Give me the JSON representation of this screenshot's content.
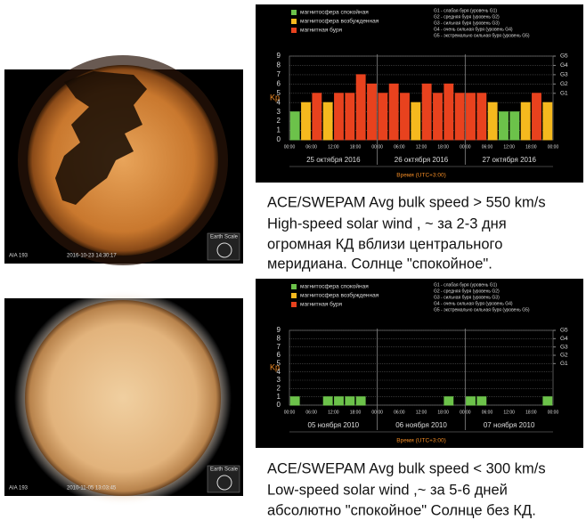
{
  "chart_data": [
    {
      "type": "bar",
      "legend": [
        {
          "label": "магнитосфера спокойная",
          "color": "#6cc24a"
        },
        {
          "label": "магнитосфера возбужденная",
          "color": "#f5b91e"
        },
        {
          "label": "магнитная буря",
          "color": "#e8421e"
        }
      ],
      "storm_levels": [
        "G1 - слабая буря (уровень G1)",
        "G2 - средняя буря (уровень G2)",
        "G3 - сильная буря (уровень G3)",
        "G4 - очень сильная буря (уровень G4)",
        "G5 - экстремально сильная буря (уровень G5)"
      ],
      "ylabel": "Kp",
      "xlabel": "Время (UTC+3:00)",
      "categories": [
        "00:00",
        null,
        "06:00",
        null,
        "12:00",
        null,
        "18:00",
        null,
        "00:00",
        null,
        "06:00",
        null,
        "12:00",
        null,
        "18:00",
        null,
        "00:00",
        null,
        "06:00",
        null,
        "12:00",
        null,
        "18:00",
        null
      ],
      "x_end_label": "00:00",
      "days": [
        "25 октября 2016",
        "26 октября 2016",
        "27 октября 2016"
      ],
      "values": [
        3,
        4,
        5,
        4,
        5,
        5,
        7,
        6,
        5,
        6,
        5,
        4,
        6,
        5,
        6,
        5,
        5,
        5,
        4,
        3,
        3,
        4,
        5,
        4
      ],
      "colors": [
        "#6cc24a",
        "#f5b91e",
        "#e8421e",
        "#f5b91e",
        "#e8421e",
        "#e8421e",
        "#e8421e",
        "#e8421e",
        "#e8421e",
        "#e8421e",
        "#e8421e",
        "#f5b91e",
        "#e8421e",
        "#e8421e",
        "#e8421e",
        "#e8421e",
        "#e8421e",
        "#e8421e",
        "#f5b91e",
        "#6cc24a",
        "#6cc24a",
        "#f5b91e",
        "#e8421e",
        "#f5b91e"
      ],
      "ylim": [
        0,
        9
      ],
      "yticks": [
        0,
        1,
        2,
        3,
        4,
        5,
        6,
        7,
        8,
        9
      ],
      "y2ticks": [
        {
          "value": 5,
          "label": "G1"
        },
        {
          "value": 6,
          "label": "G2"
        },
        {
          "value": 7,
          "label": "G3"
        },
        {
          "value": 8,
          "label": "G4"
        },
        {
          "value": 9,
          "label": "G5"
        }
      ],
      "grid": true
    },
    {
      "type": "bar",
      "legend": [
        {
          "label": "магнитосфера спокойная",
          "color": "#6cc24a"
        },
        {
          "label": "магнитосфера возбужденная",
          "color": "#f5b91e"
        },
        {
          "label": "магнитная буря",
          "color": "#e8421e"
        }
      ],
      "storm_levels": [
        "G1 - слабая буря (уровень G1)",
        "G2 - средняя буря (уровень G2)",
        "G3 - сильная буря (уровень G3)",
        "G4 - очень сильная буря (уровень G4)",
        "G5 - экстремально сильная буря (уровень G5)"
      ],
      "ylabel": "Kp",
      "xlabel": "Время (UTC+3:00)",
      "categories": [
        "00:00",
        null,
        "06:00",
        null,
        "12:00",
        null,
        "18:00",
        null,
        "00:00",
        null,
        "06:00",
        null,
        "12:00",
        null,
        "18:00",
        null,
        "00:00",
        null,
        "06:00",
        null,
        "12:00",
        null,
        "18:00",
        null
      ],
      "x_end_label": "00:00",
      "days": [
        "05 ноября 2010",
        "06 ноября 2010",
        "07 ноября 2010"
      ],
      "values": [
        1,
        0,
        0,
        1,
        1,
        1,
        1,
        0,
        0,
        0,
        0,
        0,
        0,
        0,
        1,
        0,
        1,
        1,
        0,
        0,
        0,
        0,
        0,
        1
      ],
      "colors": [
        "#6cc24a",
        "#6cc24a",
        "#6cc24a",
        "#6cc24a",
        "#6cc24a",
        "#6cc24a",
        "#6cc24a",
        "#6cc24a",
        "#6cc24a",
        "#6cc24a",
        "#6cc24a",
        "#6cc24a",
        "#6cc24a",
        "#6cc24a",
        "#6cc24a",
        "#6cc24a",
        "#6cc24a",
        "#6cc24a",
        "#6cc24a",
        "#6cc24a",
        "#6cc24a",
        "#6cc24a",
        "#6cc24a",
        "#6cc24a"
      ],
      "ylim": [
        0,
        9
      ],
      "yticks": [
        0,
        1,
        2,
        3,
        4,
        5,
        6,
        7,
        8,
        9
      ],
      "y2ticks": [
        {
          "value": 5,
          "label": "G1"
        },
        {
          "value": 6,
          "label": "G2"
        },
        {
          "value": 7,
          "label": "G3"
        },
        {
          "value": 8,
          "label": "G4"
        },
        {
          "value": 9,
          "label": "G5"
        }
      ],
      "grid": true
    }
  ],
  "images": [
    {
      "instrument": "AIA 193",
      "timestamp": "2016-10-23 14:30:17",
      "scale": "Earth Scale"
    },
    {
      "instrument": "AIA 193",
      "timestamp": "2010-11-05 13:03:45",
      "scale": "Earth Scale"
    }
  ],
  "captions": [
    [
      "ACE/SWEPAM Avg bulk speed > 550 km/s",
      "High-speed solar wind , ~ за 2-3 дня",
      "огромная КД вблизи центрального",
      "меридиана. Солнце \"спокойное\"."
    ],
    [
      "ACE/SWEPAM Avg bulk speed < 300 km/s",
      "Low-speed solar wind  ,~ за 5-6 дней",
      "абсолютно \"спокойное\" Солнце без КД."
    ]
  ]
}
